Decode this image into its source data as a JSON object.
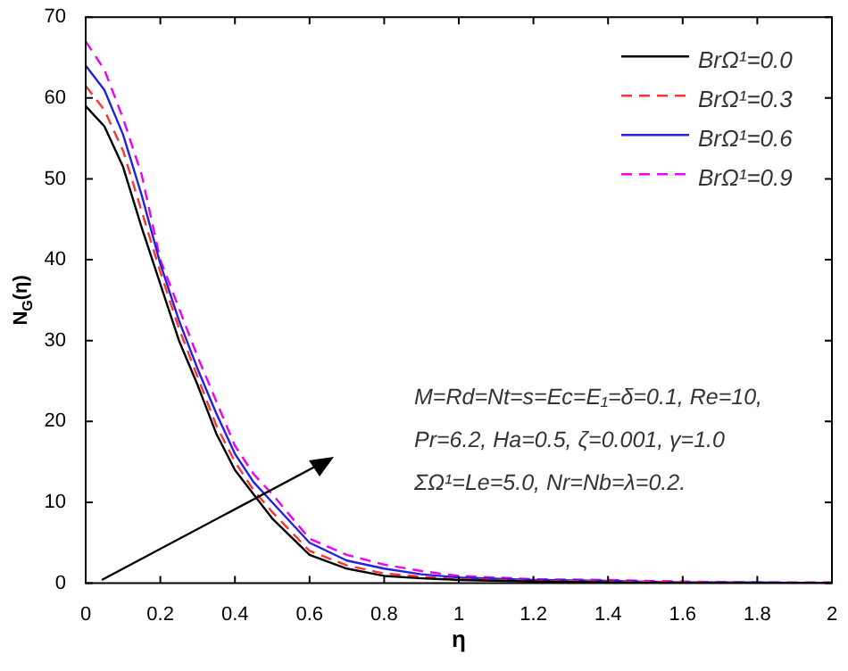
{
  "chart_data": {
    "type": "line",
    "xlabel": "η",
    "ylabel": "N$_{G}$(η)",
    "x": [
      0,
      0.05,
      0.1,
      0.15,
      0.2,
      0.25,
      0.3,
      0.35,
      0.4,
      0.45,
      0.5,
      0.6,
      0.7,
      0.8,
      0.9,
      1,
      1.2,
      1.4,
      1.6,
      1.8,
      2
    ],
    "series": [
      {
        "name": "BrΩ¹=0.0",
        "color": "#000000",
        "line_style": "solid",
        "values": [
          59,
          56.5,
          51.5,
          44,
          37,
          30,
          24.5,
          18.5,
          14,
          11,
          8,
          3.5,
          1.8,
          0.9,
          0.6,
          0.4,
          0.2,
          0.1,
          0,
          0,
          0
        ]
      },
      {
        "name": "BrΩ¹=0.3",
        "color": "#ff3333",
        "line_style": "dashed",
        "values": [
          61.5,
          58.5,
          53.5,
          46,
          38.5,
          31.5,
          25.5,
          19.5,
          15,
          11.5,
          8.8,
          4,
          2.2,
          1.2,
          0.8,
          0.5,
          0.3,
          0.2,
          0.1,
          0,
          0
        ]
      },
      {
        "name": "BrΩ¹=0.6",
        "color": "#2222dd",
        "line_style": "solid",
        "values": [
          64,
          61,
          55.5,
          48,
          39.5,
          32.5,
          26.5,
          21,
          16,
          12.5,
          10,
          5,
          2.8,
          1.8,
          1.1,
          0.7,
          0.4,
          0.3,
          0.1,
          0.1,
          0
        ]
      },
      {
        "name": "BrΩ¹=0.9",
        "color": "#ee00ee",
        "line_style": "dashed",
        "values": [
          67,
          63.5,
          57.5,
          50.5,
          40,
          34,
          28,
          22.5,
          17,
          13.5,
          11,
          5.5,
          3.5,
          2.3,
          1.5,
          0.9,
          0.5,
          0.4,
          0.2,
          0.1,
          0.1
        ]
      }
    ],
    "xlim": [
      0,
      2
    ],
    "xticks": [
      0,
      0.2,
      0.4,
      0.6,
      0.8,
      1,
      1.2,
      1.4,
      1.6,
      1.8,
      2
    ],
    "ylim": [
      0,
      70
    ],
    "yticks": [
      0,
      10,
      20,
      30,
      40,
      50,
      60,
      70
    ],
    "grid": false,
    "legend": "top right",
    "marker": "none",
    "annotations": [
      "M=Rd=Nt=s=Ec=E₁=δ=0.1, Re=10,",
      "Pr=6.2, Ha=0.5, ζ=0.001, γ=1.0",
      "ΣΩ¹=Le=5.0, Nr=Nb=λ=0.2."
    ]
  }
}
